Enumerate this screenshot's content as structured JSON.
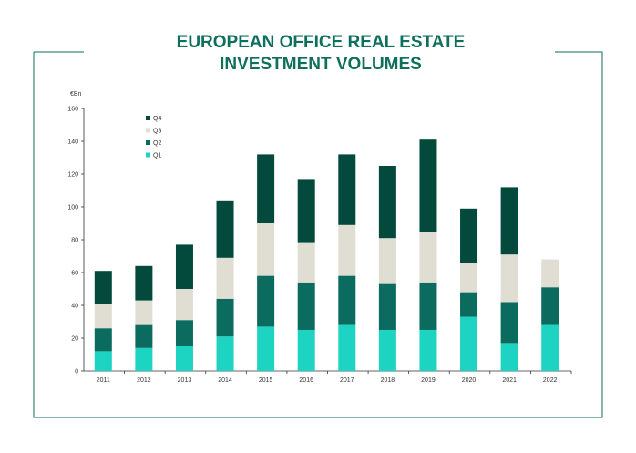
{
  "title_lines": [
    "EUROPEAN OFFICE REAL ESTATE",
    "INVESTMENT VOLUMES"
  ],
  "colors": {
    "frame": "#0e6f5c",
    "title": "#0e6f5c",
    "axis": "#333333"
  },
  "chart_data": {
    "type": "bar",
    "stacked": true,
    "unit_label": "€Bn",
    "categories": [
      "2011",
      "2012",
      "2013",
      "2014",
      "2015",
      "2016",
      "2017",
      "2018",
      "2019",
      "2020",
      "2021",
      "2022"
    ],
    "series": [
      {
        "name": "Q1",
        "color": "#1dd3c1",
        "values": [
          12,
          14,
          15,
          21,
          27,
          25,
          28,
          25,
          25,
          33,
          17,
          28
        ]
      },
      {
        "name": "Q2",
        "color": "#0a6b5e",
        "values": [
          14,
          14,
          16,
          23,
          31,
          29,
          30,
          28,
          29,
          15,
          25,
          23
        ]
      },
      {
        "name": "Q3",
        "color": "#e0ddd3",
        "values": [
          15,
          15,
          19,
          25,
          32,
          24,
          31,
          28,
          31,
          18,
          29,
          17
        ]
      },
      {
        "name": "Q4",
        "color": "#034a3d",
        "values": [
          20,
          21,
          27,
          35,
          42,
          39,
          43,
          44,
          56,
          33,
          41,
          0
        ]
      }
    ],
    "ylim": [
      0,
      160
    ],
    "yticks": [
      0,
      20,
      40,
      60,
      80,
      100,
      120,
      140,
      160
    ],
    "legend_order": [
      "Q4",
      "Q3",
      "Q2",
      "Q1"
    ],
    "legend_position": "top-left",
    "grid": false
  }
}
